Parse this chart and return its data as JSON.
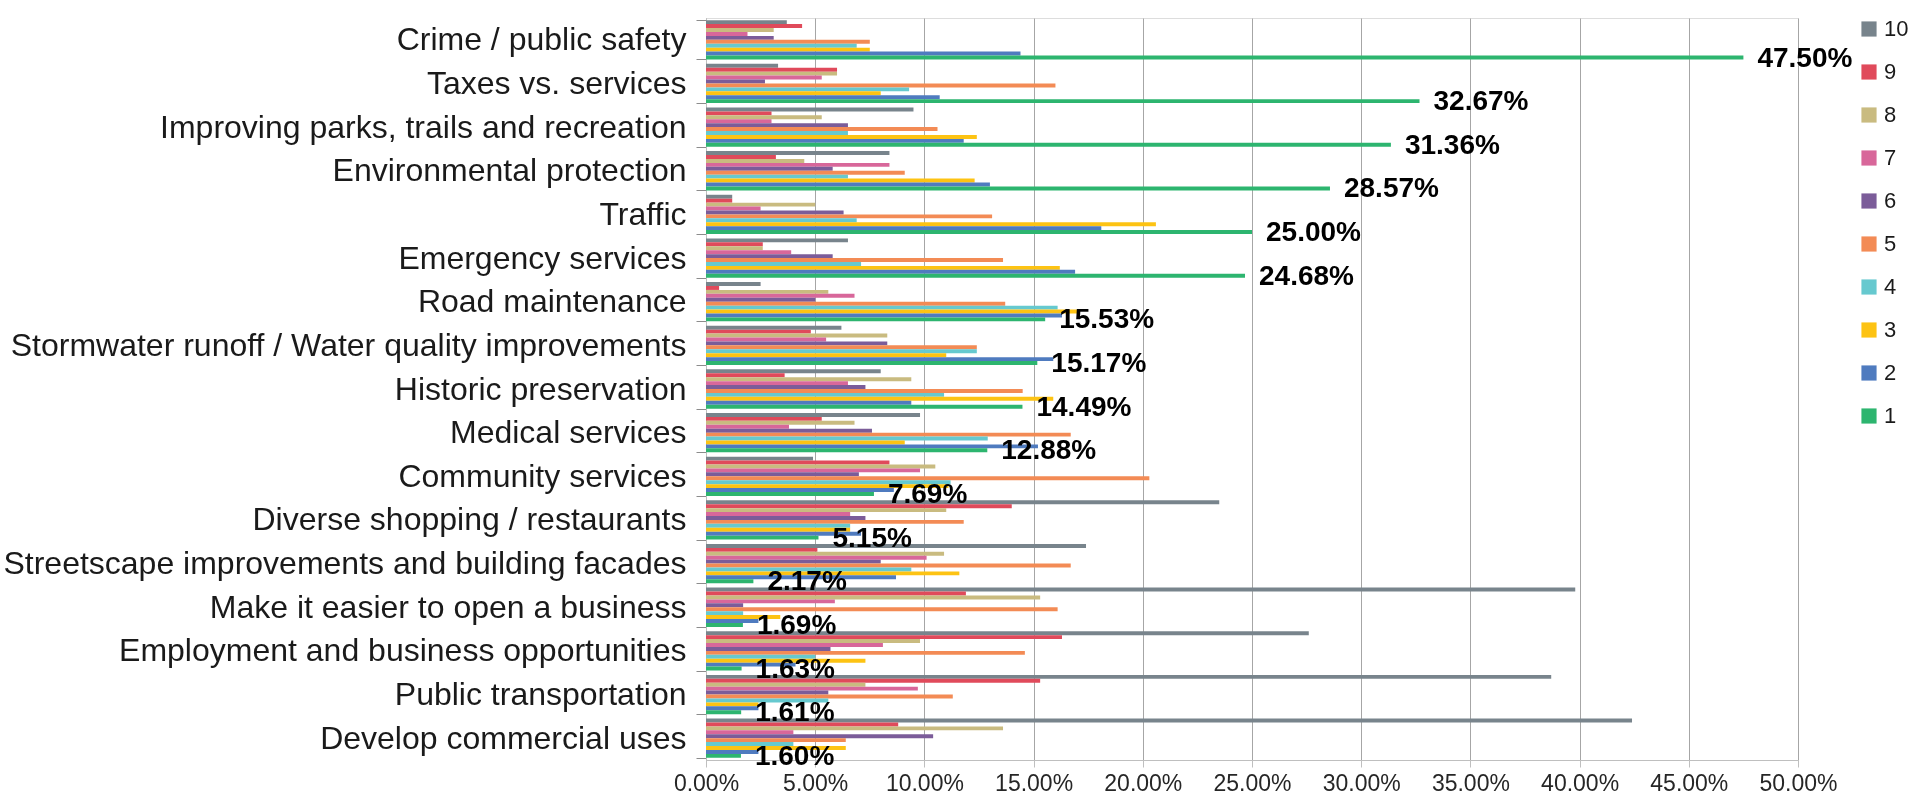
{
  "chart_data": {
    "type": "bar",
    "orientation": "horizontal",
    "categories": [
      "Crime / public safety",
      "Taxes vs. services",
      "Improving parks, trails and recreation",
      "Environmental protection",
      "Traffic",
      "Emergency services",
      "Road maintenance",
      "Stormwater runoff / Water quality improvements",
      "Historic preservation",
      "Medical services",
      "Community services",
      "Diverse shopping / restaurants",
      "Streetscape improvements and building facades",
      "Make it easier to open a business",
      "Employment and business opportunities",
      "Public transportation",
      "Develop commercial uses"
    ],
    "series": [
      {
        "name": "10",
        "color": "#78848c",
        "values": [
          3.7,
          3.3,
          9.5,
          8.4,
          1.2,
          6.5,
          2.5,
          6.2,
          8.0,
          9.8,
          4.9,
          23.5,
          17.4,
          39.8,
          27.6,
          38.7,
          42.4
        ]
      },
      {
        "name": "9",
        "color": "#e04a5b",
        "values": [
          4.4,
          6.0,
          3.0,
          3.2,
          1.2,
          2.6,
          0.6,
          4.8,
          3.6,
          5.3,
          8.4,
          14.0,
          5.1,
          11.9,
          16.3,
          15.3,
          8.8
        ]
      },
      {
        "name": "8",
        "color": "#c9bb80",
        "values": [
          3.1,
          6.0,
          5.3,
          4.5,
          5.0,
          2.6,
          5.6,
          8.3,
          9.4,
          6.8,
          10.5,
          11.0,
          10.9,
          15.3,
          9.8,
          7.3,
          13.6
        ]
      },
      {
        "name": "7",
        "color": "#d8679a",
        "values": [
          1.9,
          5.3,
          3.0,
          8.4,
          2.5,
          3.9,
          6.8,
          5.5,
          6.5,
          3.8,
          9.8,
          6.6,
          10.1,
          5.9,
          8.1,
          9.7,
          4.0
        ]
      },
      {
        "name": "6",
        "color": "#7b5c99",
        "values": [
          3.1,
          2.7,
          6.5,
          5.8,
          6.3,
          5.8,
          5.0,
          8.3,
          7.3,
          7.6,
          7.0,
          7.3,
          8.0,
          1.7,
          5.7,
          5.6,
          10.4
        ]
      },
      {
        "name": "5",
        "color": "#f38b55",
        "values": [
          7.5,
          16.0,
          10.6,
          9.1,
          13.1,
          13.6,
          13.7,
          12.4,
          14.5,
          16.7,
          20.3,
          11.8,
          16.7,
          16.1,
          14.6,
          11.3,
          6.4
        ]
      },
      {
        "name": "4",
        "color": "#66c9cf",
        "values": [
          6.9,
          9.3,
          6.5,
          6.5,
          6.9,
          7.1,
          16.1,
          12.4,
          10.9,
          12.9,
          11.2,
          6.6,
          9.4,
          1.7,
          5.0,
          5.6,
          4.0
        ]
      },
      {
        "name": "3",
        "color": "#fdc313",
        "values": [
          7.5,
          8.0,
          12.4,
          12.3,
          20.6,
          16.2,
          17.1,
          11.0,
          15.9,
          9.1,
          11.1,
          6.6,
          11.6,
          3.4,
          7.3,
          2.4,
          6.4
        ]
      },
      {
        "name": "2",
        "color": "#4f7bbf",
        "values": [
          14.4,
          10.7,
          11.8,
          13.0,
          18.1,
          16.9,
          16.3,
          15.9,
          9.4,
          15.2,
          8.6,
          7.1,
          8.7,
          2.4,
          4.1,
          2.4,
          2.4
        ]
      },
      {
        "name": "1",
        "color": "#2db56f",
        "values": [
          47.5,
          32.67,
          31.36,
          28.57,
          25.0,
          24.68,
          15.53,
          15.17,
          14.49,
          12.88,
          7.69,
          5.15,
          2.17,
          1.69,
          1.63,
          1.61,
          1.6
        ],
        "value_labels": [
          "47.50%",
          "32.67%",
          "31.36%",
          "28.57%",
          "25.00%",
          "24.68%",
          "15.53%",
          "15.17%",
          "14.49%",
          "12.88%",
          "7.69%",
          "5.15%",
          "2.17%",
          "1.69%",
          "1.63%",
          "1.61%",
          "1.60%"
        ]
      }
    ],
    "xlim": [
      0,
      50
    ],
    "xticks": [
      {
        "value": 0,
        "label": "0.00%"
      },
      {
        "value": 5,
        "label": "5.00%"
      },
      {
        "value": 10,
        "label": "10.00%"
      },
      {
        "value": 15,
        "label": "15.00%"
      },
      {
        "value": 20,
        "label": "20.00%"
      },
      {
        "value": 25,
        "label": "25.00%"
      },
      {
        "value": 30,
        "label": "30.00%"
      },
      {
        "value": 35,
        "label": "35.00%"
      },
      {
        "value": 40,
        "label": "40.00%"
      },
      {
        "value": 45,
        "label": "45.00%"
      },
      {
        "value": 50,
        "label": "50.00%"
      }
    ],
    "grid": "x",
    "legend": "right"
  }
}
